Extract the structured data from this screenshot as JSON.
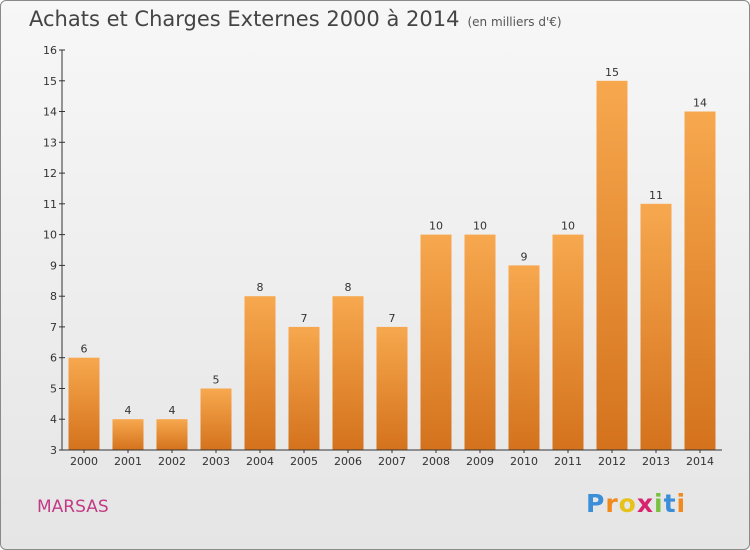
{
  "title": "Achats et Charges Externes 2000 à 2014",
  "subtitle": "(en milliers d'€)",
  "commune": "MARSAS",
  "logo": {
    "letters": [
      "P",
      "r",
      "o",
      "x",
      "i",
      "t",
      "i"
    ],
    "colors": [
      "#3a8fd8",
      "#f08a1c",
      "#e8c21c",
      "#d8246e",
      "#7ac143",
      "#3a8fd8",
      "#f08a1c"
    ]
  },
  "colors": {
    "bar_light": "#f7a84e",
    "bar_dark": "#d4721d",
    "axis": "#333333",
    "grid": "#dddddd"
  },
  "chart_data": {
    "type": "bar",
    "categories": [
      "2000",
      "2001",
      "2002",
      "2003",
      "2004",
      "2005",
      "2006",
      "2007",
      "2008",
      "2009",
      "2010",
      "2011",
      "2012",
      "2013",
      "2014"
    ],
    "values": [
      6,
      4,
      4,
      5,
      8,
      7,
      8,
      7,
      10,
      10,
      9,
      10,
      15,
      11,
      14
    ],
    "ylim": [
      3,
      16
    ],
    "yticks": [
      3,
      4,
      5,
      6,
      7,
      8,
      9,
      10,
      11,
      12,
      13,
      14,
      15,
      16
    ],
    "grid": false
  }
}
